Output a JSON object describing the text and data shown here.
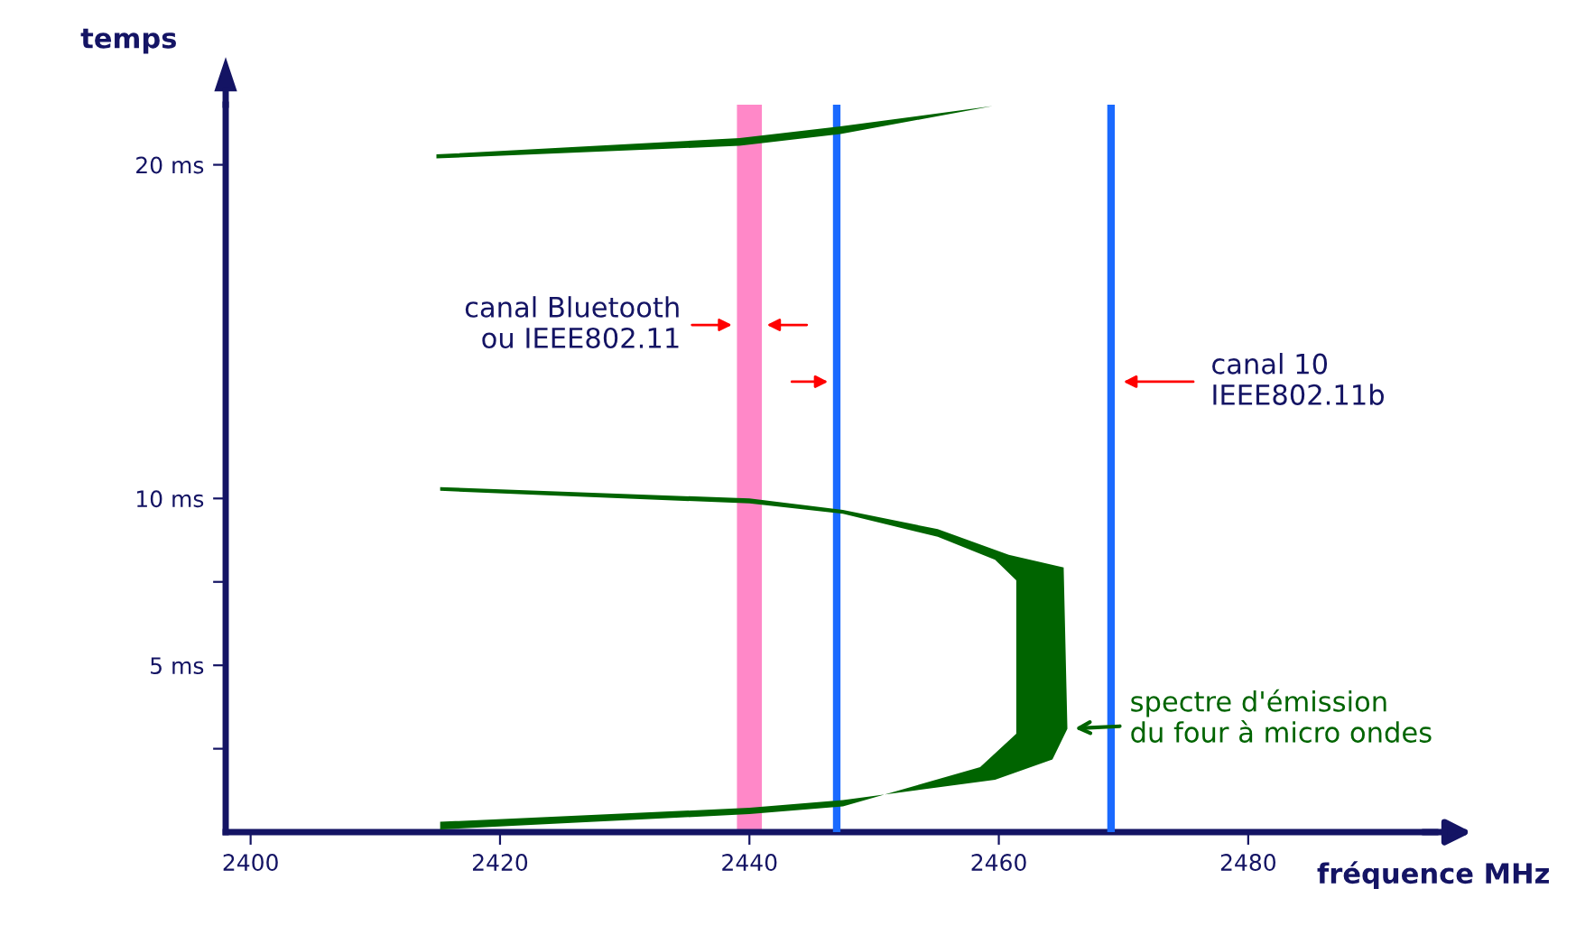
{
  "chart_data": {
    "type": "area",
    "xlabel": "fréquence MHz",
    "ylabel": "temps",
    "series": [
      {
        "color": "#006400",
        "x": [
          2414.9,
          2439.2,
          2447.3,
          2459.5,
          2447.3,
          2439.2,
          2414.9
        ],
        "values": [
          20.31,
          20.8,
          21.15,
          21.76,
          20.92,
          20.57,
          20.19
        ]
      },
      {
        "color": "#006400",
        "x": [
          2415.2,
          2440.0,
          2447.5,
          2455.1,
          2460.8,
          2465.2,
          2465.5,
          2464.3,
          2459.7,
          2447.5,
          2440.0,
          2415.2,
          2415.2,
          2440.0,
          2447.5,
          2458.5,
          2461.4,
          2461.4,
          2459.7,
          2455.1,
          2447.5,
          2440.0,
          2415.2
        ],
        "values": [
          10.34,
          10.0,
          9.66,
          9.08,
          8.31,
          7.93,
          3.1,
          2.18,
          1.57,
          0.96,
          0.73,
          0.31,
          0.08,
          0.54,
          0.77,
          1.95,
          2.95,
          7.55,
          8.16,
          8.85,
          9.54,
          9.85,
          10.23
        ]
      }
    ],
    "xlim": [
      2398,
      2495
    ],
    "xticks": [
      2400,
      2420,
      2440,
      2460,
      2480
    ],
    "ylim": [
      0,
      21.8
    ],
    "yticks": [
      {
        "value": 2.5,
        "label": null
      },
      {
        "value": 5,
        "label": "5 ms"
      },
      {
        "value": 7.5,
        "label": null
      },
      {
        "value": 10,
        "label": "10 ms"
      },
      {
        "value": 20,
        "label": "20 ms"
      }
    ],
    "bands": [
      {
        "axis": "x",
        "from": 2439,
        "to": 2441,
        "color": "#ff88c8",
        "label": "canal Bluetooth\nou IEEE802.11"
      }
    ],
    "ref_lines": [
      {
        "axis": "x",
        "value": 2447,
        "color": "#1a6aff"
      },
      {
        "axis": "x",
        "value": 2469,
        "color": "#1a6aff",
        "label": "canal 10\nIEEE802.11b"
      }
    ],
    "annotations": [
      {
        "text": "spectre d'émission\ndu four à micro ondes",
        "x": 2465.5,
        "y": 3.1
      }
    ]
  }
}
